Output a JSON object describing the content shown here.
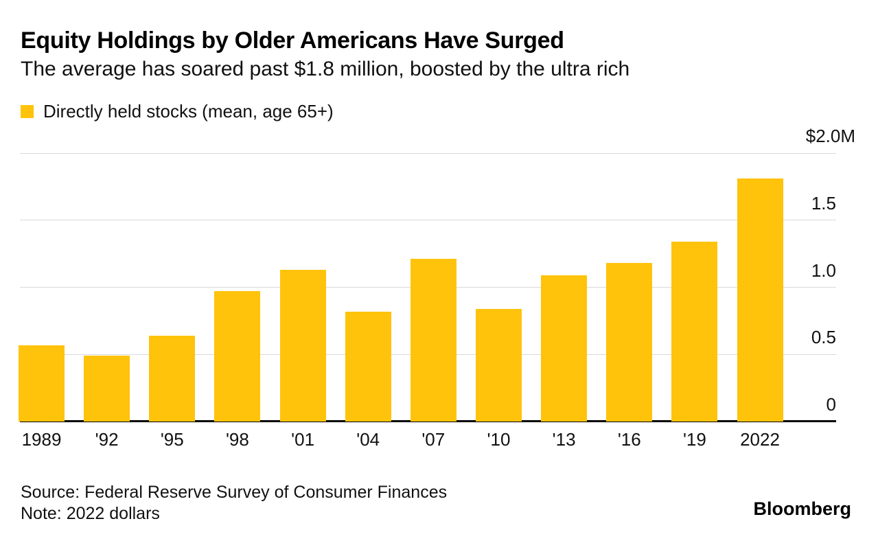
{
  "header": {
    "title": "Equity Holdings by Older Americans Have Surged",
    "subtitle": "The average has soared past $1.8 million, boosted by the ultra rich"
  },
  "legend": {
    "label": "Directly held stocks (mean, age 65+)",
    "swatch_color": "#FEC30A"
  },
  "chart_data": {
    "type": "bar",
    "title": "Equity Holdings by Older Americans Have Surged",
    "subtitle": "The average has soared past $1.8 million, boosted by the ultra rich",
    "series_name": "Directly held stocks (mean, age 65+)",
    "categories": [
      "1989",
      "'92",
      "'95",
      "'98",
      "'01",
      "'04",
      "'07",
      "'10",
      "'13",
      "'16",
      "'19",
      "2022"
    ],
    "values": [
      0.57,
      0.49,
      0.64,
      0.97,
      1.13,
      0.82,
      1.21,
      0.84,
      1.09,
      1.18,
      1.34,
      1.81
    ],
    "unit": "millions of USD",
    "xlabel": "",
    "ylabel": "",
    "ylim": [
      0,
      2.0
    ],
    "yticks": [
      {
        "value": 2.0,
        "label": "$2.0M"
      },
      {
        "value": 1.5,
        "label": "1.5"
      },
      {
        "value": 1.0,
        "label": "1.0"
      },
      {
        "value": 0.5,
        "label": "0.5"
      },
      {
        "value": 0.0,
        "label": "0"
      }
    ],
    "grid": true,
    "legend_position": "top-left",
    "bar_color": "#FEC30A",
    "gridline_color": "#d9d9d9"
  },
  "footer": {
    "source": "Source: Federal Reserve Survey of Consumer Finances",
    "note": "Note: 2022 dollars",
    "brand": "Bloomberg"
  }
}
